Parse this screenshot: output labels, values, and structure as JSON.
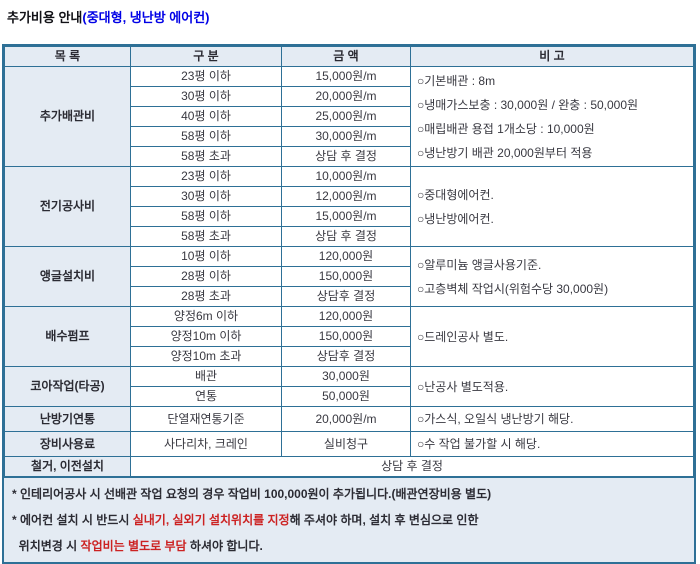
{
  "title": {
    "main": "추가비용 안내",
    "paren": "(중대형, 냉난방 에어컨)"
  },
  "table": {
    "headers": [
      "목 록",
      "구 분",
      "금 액",
      "비 고"
    ],
    "sections": [
      {
        "name": "추가배관비",
        "rows": [
          [
            "23평 이하",
            "15,000원/m"
          ],
          [
            "30평 이하",
            "20,000원/m"
          ],
          [
            "40평 이하",
            "25,000원/m"
          ],
          [
            "58평 이하",
            "30,000원/m"
          ],
          [
            "58평 초과",
            "상담 후 결정"
          ]
        ],
        "notes": [
          "○기본배관 : 8m",
          "○냉매가스보충 : 30,000원 / 완충 : 50,000원",
          "○매립배관 용접 1개소당 : 10,000원",
          "○냉난방기 배관 20,000원부터 적용"
        ]
      },
      {
        "name": "전기공사비",
        "rows": [
          [
            "23평 이하",
            "10,000원/m"
          ],
          [
            "30평 이하",
            "12,000원/m"
          ],
          [
            "58평 이하",
            "15,000원/m"
          ],
          [
            "58평 초과",
            "상담 후 결정"
          ]
        ],
        "notes": [
          "○중대형에어컨.",
          "○냉난방에어컨."
        ]
      },
      {
        "name": "앵글설치비",
        "rows": [
          [
            "10평 이하",
            "120,000원"
          ],
          [
            "28평 이하",
            "150,000원"
          ],
          [
            "28평 초과",
            "상담후 결정"
          ]
        ],
        "notes": [
          "○알루미늄 앵글사용기준.",
          "○고층벽체 작업시(위험수당 30,000원)"
        ]
      },
      {
        "name": "배수펌프",
        "rows": [
          [
            "양정6m 이하",
            "120,000원"
          ],
          [
            "양정10m 이하",
            "150,000원"
          ],
          [
            "양정10m 초과",
            "상담후 결정"
          ]
        ],
        "notes": [
          "○드레인공사 별도."
        ]
      },
      {
        "name": "코아작업(타공)",
        "rows": [
          [
            "배관",
            "30,000원"
          ],
          [
            "연통",
            "50,000원"
          ]
        ],
        "notes": [
          "○난공사 별도적용."
        ]
      },
      {
        "name": "난방기연통",
        "rows": [
          [
            "단열재연통기준",
            "20,000원/m"
          ]
        ],
        "notes": [
          "○가스식, 오일식 냉난방기 해당."
        ]
      },
      {
        "name": "장비사용료",
        "rows": [
          [
            "사다리차, 크레인",
            "실비청구"
          ]
        ],
        "notes": [
          "○수 작업 불가할 시 해당."
        ]
      }
    ],
    "footer_row": {
      "name": "철거, 이전설치",
      "value": "상담 후 결정"
    }
  },
  "footnotes": [
    {
      "parts": [
        {
          "text": "* 인테리어공사 시 선배관 작업 요청의 경우 작업비 100,000원이 추가됩니다.(배관연장비용 별도)",
          "red": false
        }
      ]
    },
    {
      "parts": [
        {
          "text": "* 에어컨 설치 시 반드시 ",
          "red": false
        },
        {
          "text": "실내기, 실외기 설치위치를 지정",
          "red": true
        },
        {
          "text": "해 주셔야 하며, 설치 후 변심으로 인한",
          "red": false
        }
      ]
    },
    {
      "parts": [
        {
          "text": "  위치변경 시 ",
          "red": false
        },
        {
          "text": "작업비는 별도로 부담",
          "red": true
        },
        {
          "text": " 하셔야 합니다.",
          "red": false
        }
      ]
    }
  ],
  "colors": {
    "border": "#2e7096",
    "cell_fill": "#e4ebf3",
    "title_paren_blue": "#0000e6",
    "highlight_red": "#cc2222",
    "text_dark": "#2b2b33"
  }
}
